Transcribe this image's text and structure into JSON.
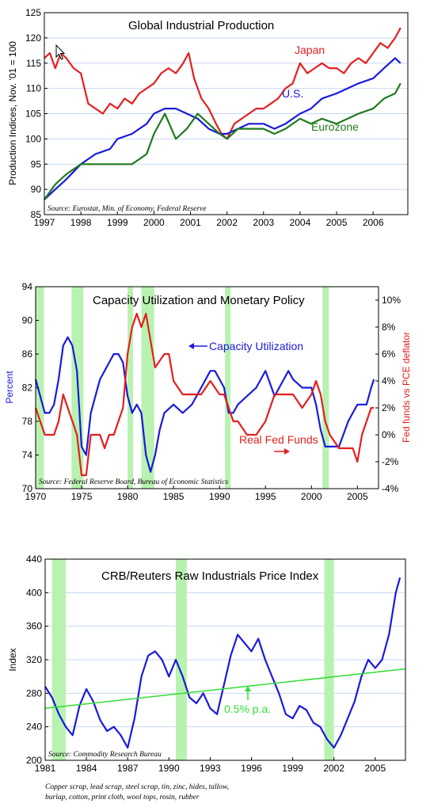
{
  "colors": {
    "red": "#e41f1f",
    "blue": "#1a1adc",
    "green": "#1f7a1f",
    "light_green": "#33dd33",
    "recession": "#b8f2b0",
    "grid": "#c8d8f0"
  },
  "chart_data": [
    {
      "type": "line",
      "title": "Global Industrial Production",
      "ylabel": "Production Indices, Nov. '01 = 100",
      "source": "Source: Eurostat, Min. of Economy, Federal Reserve",
      "xlim": [
        1997,
        2006.95
      ],
      "ylim": [
        85,
        125
      ],
      "x_ticks": [
        "1997",
        "1998",
        "1999",
        "2000",
        "2001",
        "2002",
        "2003",
        "2004",
        "2005",
        "2006"
      ],
      "y_ticks": [
        "85",
        "90",
        "95",
        "100",
        "105",
        "110",
        "115",
        "120",
        "125"
      ],
      "series": [
        {
          "name": "Japan",
          "color": "red",
          "x": [
            1997,
            1997.15,
            1997.3,
            1997.45,
            1997.6,
            1997.8,
            1998,
            1998.2,
            1998.4,
            1998.6,
            1998.8,
            1999,
            1999.2,
            1999.4,
            1999.6,
            1999.8,
            2000,
            2000.2,
            2000.4,
            2000.6,
            2000.8,
            2000.95,
            2001.1,
            2001.3,
            2001.5,
            2001.7,
            2001.85,
            2002,
            2002.2,
            2002.4,
            2002.6,
            2002.8,
            2003,
            2003.2,
            2003.4,
            2003.6,
            2003.8,
            2004,
            2004.2,
            2004.4,
            2004.6,
            2004.8,
            2005,
            2005.2,
            2005.4,
            2005.6,
            2005.8,
            2006,
            2006.2,
            2006.4,
            2006.6,
            2006.75
          ],
          "values": [
            116,
            117,
            114,
            117,
            116,
            114,
            113,
            107,
            106,
            105,
            107,
            106,
            108,
            107,
            109,
            110,
            111,
            113,
            114,
            113,
            115,
            117,
            112,
            108,
            106,
            103,
            101,
            100,
            103,
            104,
            105,
            106,
            106,
            107,
            108,
            110,
            111,
            115,
            113,
            114,
            115,
            114,
            114,
            113,
            115,
            116,
            115,
            117,
            119,
            118,
            120,
            122
          ]
        },
        {
          "name": "U.S.",
          "color": "blue",
          "x": [
            1997,
            1997.3,
            1997.6,
            1998,
            1998.4,
            1998.8,
            1999,
            1999.4,
            1999.8,
            2000,
            2000.3,
            2000.6,
            2000.9,
            2001.2,
            2001.5,
            2001.8,
            2002,
            2002.3,
            2002.6,
            2003,
            2003.3,
            2003.6,
            2004,
            2004.3,
            2004.6,
            2005,
            2005.3,
            2005.6,
            2006,
            2006.3,
            2006.6,
            2006.75
          ],
          "values": [
            88,
            90,
            92,
            95,
            97,
            98,
            100,
            101,
            103,
            105,
            106,
            106,
            105,
            104,
            102,
            101,
            101,
            102,
            103,
            103,
            102,
            103,
            105,
            106,
            108,
            109,
            110,
            111,
            112,
            114,
            116,
            115
          ]
        },
        {
          "name": "Eurozone",
          "color": "green",
          "x": [
            1997,
            1997.3,
            1997.6,
            1998,
            1998.4,
            1998.8,
            1999,
            1999.4,
            1999.8,
            2000,
            2000.3,
            2000.6,
            2000.9,
            2001.2,
            2001.5,
            2001.8,
            2002,
            2002.3,
            2002.6,
            2003,
            2003.3,
            2003.6,
            2004,
            2004.3,
            2004.6,
            2005,
            2005.3,
            2005.6,
            2006,
            2006.3,
            2006.6,
            2006.75
          ],
          "values": [
            88,
            91,
            93,
            95,
            95,
            95,
            95,
            95,
            97,
            101,
            105,
            100,
            102,
            105,
            103,
            101,
            100,
            102,
            102,
            102,
            101,
            102,
            104,
            103,
            104,
            103,
            104,
            105,
            106,
            108,
            109,
            111
          ]
        }
      ],
      "labels": [
        "Japan",
        "U.S.",
        "Eurozone"
      ]
    },
    {
      "type": "line",
      "title": "Capacity Utilization and Monetary Policy",
      "ylabel": "Percent",
      "y2label": "Fed funds vs PCE deflator",
      "source": "Source:  Federal Reserve Board, Bureau of Economic Statistics",
      "xlim": [
        1970,
        2007.3
      ],
      "ylim": [
        70,
        94
      ],
      "y2lim": [
        -4,
        11
      ],
      "x_ticks": [
        "1970",
        "1975",
        "1980",
        "1985",
        "1990",
        "1995",
        "2000",
        "2005"
      ],
      "y_ticks": [
        "70",
        "74",
        "78",
        "82",
        "86",
        "90",
        "94"
      ],
      "y2_ticks": [
        "-4%",
        "-2%",
        "0%",
        "2%",
        "4%",
        "6%",
        "8%",
        "10%"
      ],
      "recessions": [
        [
          1970,
          1970.9
        ],
        [
          1973.9,
          1975.2
        ],
        [
          1980,
          1980.6
        ],
        [
          1981.5,
          1982.9
        ],
        [
          1990.6,
          1991.2
        ],
        [
          2001.2,
          2001.9
        ]
      ],
      "series": [
        {
          "name": "Capacity Utilization",
          "color": "blue",
          "axis": "left",
          "x": [
            1970,
            1970.5,
            1971,
            1971.5,
            1972,
            1972.5,
            1973,
            1973.5,
            1974,
            1974.5,
            1975,
            1975.5,
            1976,
            1976.5,
            1977,
            1977.5,
            1978,
            1978.5,
            1979,
            1979.5,
            1980,
            1980.5,
            1981,
            1981.5,
            1982,
            1982.5,
            1983,
            1983.5,
            1984,
            1985,
            1986,
            1987,
            1987.5,
            1988,
            1988.5,
            1989,
            1989.5,
            1990,
            1990.5,
            1991,
            1991.5,
            1992,
            1993,
            1994,
            1994.5,
            1995,
            1996,
            1997,
            1997.5,
            1998,
            1999,
            2000,
            2000.5,
            2001,
            2001.5,
            2002,
            2003,
            2004,
            2005,
            2006,
            2006.5,
            2006.8
          ],
          "values": [
            83,
            81,
            79,
            79,
            80,
            83,
            87,
            88,
            87,
            84,
            75,
            74,
            79,
            81,
            83,
            84,
            85,
            86,
            86,
            85,
            81,
            79,
            80,
            79,
            74,
            72,
            74,
            77,
            79,
            80,
            79,
            80,
            81,
            82,
            83,
            84,
            84,
            83,
            82,
            79,
            79,
            80,
            81,
            82,
            83,
            84,
            81,
            83,
            84,
            83,
            82,
            82,
            80,
            77,
            75,
            75,
            75,
            78,
            80,
            80,
            82,
            83
          ]
        },
        {
          "name": "Real Fed Funds",
          "color": "red",
          "axis": "right",
          "x": [
            1970,
            1970.5,
            1971,
            1971.5,
            1972,
            1972.5,
            1973,
            1973.5,
            1974,
            1974.5,
            1975,
            1975.5,
            1976,
            1976.5,
            1977,
            1977.5,
            1978,
            1978.5,
            1979,
            1979.5,
            1980,
            1980.5,
            1981,
            1981.5,
            1982,
            1982.5,
            1983,
            1984,
            1984.5,
            1985,
            1986,
            1987,
            1988,
            1989,
            1990,
            1990.5,
            1991,
            1991.5,
            1992,
            1993,
            1994,
            1995,
            1996,
            1997,
            1998,
            1999,
            2000,
            2000.5,
            2001,
            2001.5,
            2002,
            2003,
            2003.5,
            2004,
            2004.5,
            2005,
            2005.5,
            2006,
            2006.5,
            2006.8
          ],
          "values": [
            2,
            1,
            0,
            0,
            0,
            1,
            3,
            2,
            1,
            0,
            -3,
            -3,
            0,
            0,
            0,
            -1,
            0,
            0,
            1,
            2,
            6,
            8,
            9,
            8,
            9,
            7,
            5,
            6,
            6,
            4,
            3,
            3,
            3,
            4,
            3,
            3,
            2,
            1,
            1,
            0,
            0,
            1,
            3,
            3,
            3,
            2,
            3,
            4,
            3,
            1,
            0,
            -1,
            -1,
            -1,
            -1,
            -2,
            0,
            1,
            2,
            2
          ]
        }
      ],
      "labels": [
        "Capacity Utilization",
        "Real Fed Funds"
      ]
    },
    {
      "type": "line",
      "title": "CRB/Reuters Raw Industrials Price Index",
      "ylabel": "Index",
      "source": "Source: Commodity Research Bureau",
      "footnote": [
        "Copper scrap, lead scrap, steel scrap, tin, zinc, hides, tallow,",
        "burlap, cotton, print cloth, wool tops, rosin, rubber"
      ],
      "xlim": [
        1981,
        2007.2
      ],
      "ylim": [
        200,
        440
      ],
      "x_ticks": [
        "1981",
        "1984",
        "1987",
        "1990",
        "1993",
        "1996",
        "1999",
        "2002",
        "2005"
      ],
      "y_ticks": [
        "200",
        "240",
        "280",
        "320",
        "360",
        "400",
        "440"
      ],
      "recessions": [
        [
          1981.5,
          1982.5
        ],
        [
          1990.5,
          1991.3
        ],
        [
          2001.3,
          2002.0
        ]
      ],
      "series": [
        {
          "name": "CRB Raw Industrials",
          "color": "blue",
          "x": [
            1981,
            1981.5,
            1982,
            1982.5,
            1983,
            1983.5,
            1984,
            1984.5,
            1985,
            1985.5,
            1986,
            1986.5,
            1987,
            1987.5,
            1988,
            1988.5,
            1989,
            1989.5,
            1990,
            1990.5,
            1991,
            1991.5,
            1992,
            1992.5,
            1993,
            1993.5,
            1994,
            1994.5,
            1995,
            1995.5,
            1996,
            1996.5,
            1997,
            1997.5,
            1998,
            1998.5,
            1999,
            1999.5,
            2000,
            2000.5,
            2001,
            2001.5,
            2002,
            2002.5,
            2003,
            2003.5,
            2004,
            2004.5,
            2005,
            2005.5,
            2006,
            2006.5,
            2006.8
          ],
          "values": [
            288,
            275,
            255,
            240,
            230,
            265,
            285,
            270,
            248,
            235,
            240,
            230,
            215,
            250,
            300,
            325,
            330,
            320,
            300,
            320,
            300,
            275,
            268,
            280,
            262,
            255,
            290,
            325,
            350,
            340,
            330,
            345,
            320,
            300,
            280,
            255,
            250,
            265,
            260,
            245,
            240,
            225,
            215,
            230,
            250,
            270,
            300,
            320,
            310,
            320,
            350,
            400,
            418
          ]
        },
        {
          "name": "0.5% p.a.",
          "color": "light_green",
          "x": [
            1981,
            2007.2
          ],
          "values": [
            262,
            309
          ]
        }
      ],
      "labels": [
        "0.5% p.a."
      ]
    }
  ]
}
